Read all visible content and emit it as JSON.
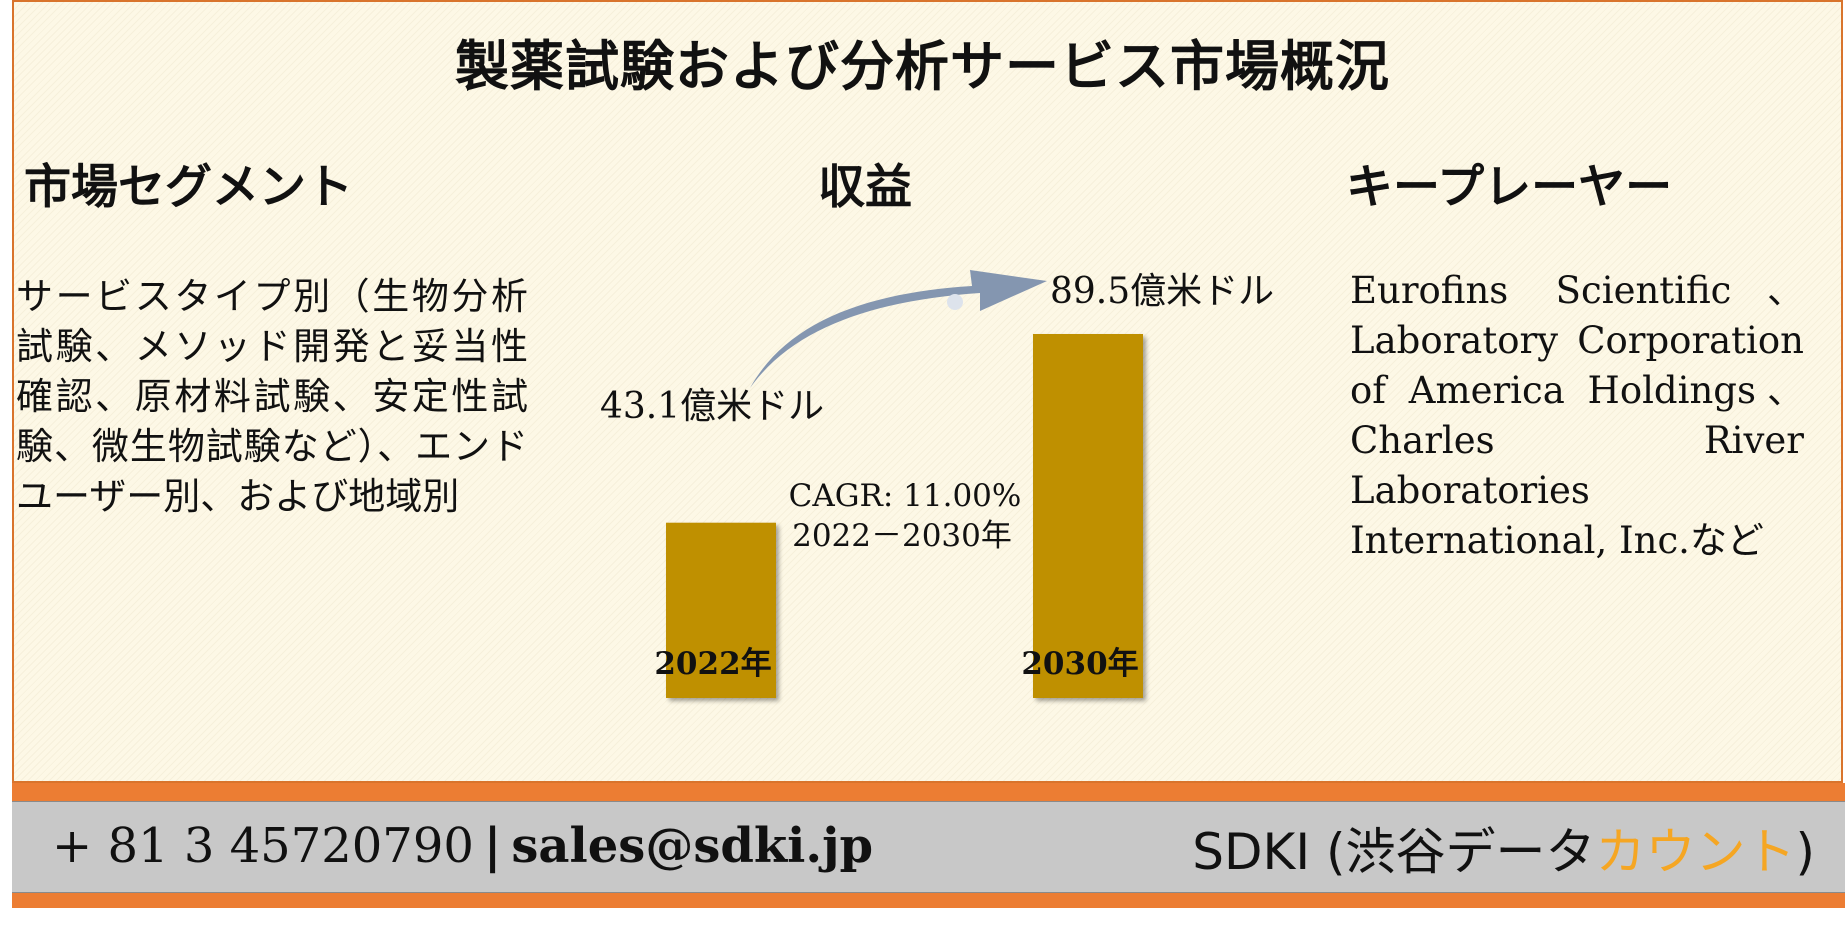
{
  "title": "製薬試験および分析サービス市場概況",
  "segments": {
    "heading": "市場セグメント",
    "body": "サービスタイプ別（生物分析試験、メソッド開発と妥当性確認、原材料試験、安定性試験、微生物試験など）、エンドユーザー別、および地域別"
  },
  "revenue": {
    "heading": "収益"
  },
  "key_players": {
    "heading": "キープレーヤー",
    "body": "Eurofins Scientific、Laboratory Corporation of America Holdings、Charles River Laboratories International, Inc.など"
  },
  "chart_data": {
    "type": "bar",
    "categories": [
      "2022年",
      "2030年"
    ],
    "values": [
      43.1,
      89.5
    ],
    "value_labels": [
      "43.1億米ドル",
      "89.5億米ドル"
    ],
    "unit": "億米ドル",
    "annotation": {
      "cagr": "CAGR: 11.00%",
      "period": "2022－2030年"
    },
    "colors": {
      "bar": "#bf9000",
      "arrow": "#8496b0"
    }
  },
  "footer": {
    "phone": "+ 81 3 45720790",
    "separator": "|",
    "email": "sales@sdki.jp",
    "brand_prefix": "SDKI (渋谷データ",
    "brand_accent": "カウント",
    "brand_suffix": ")",
    "colors": {
      "stripe": "#ec7d33",
      "bar": "#c8c8c8",
      "accent": "#f5a623"
    }
  }
}
